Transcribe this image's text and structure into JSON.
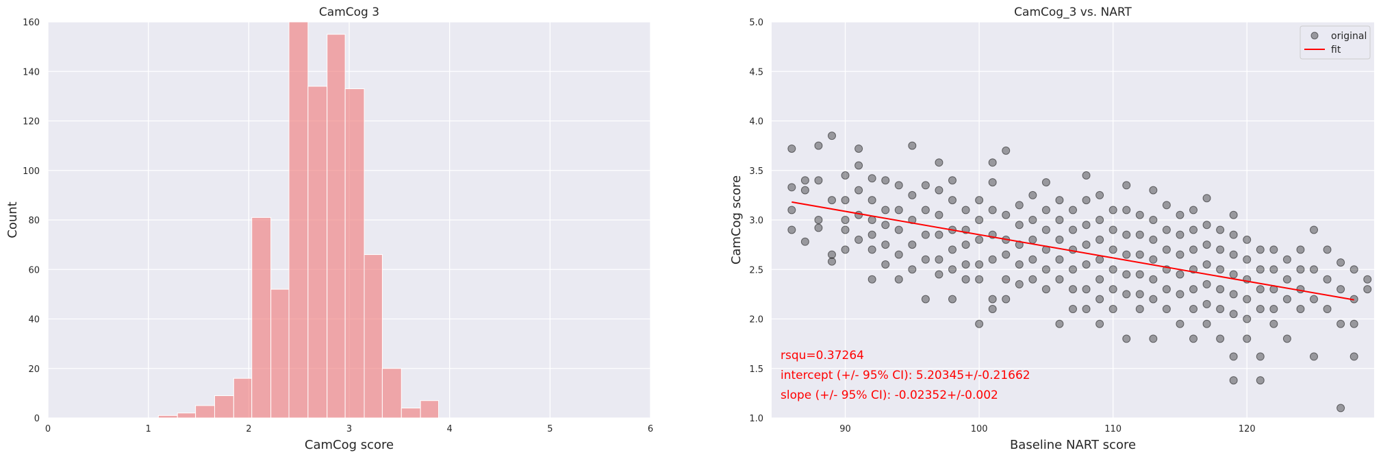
{
  "chart_data": [
    {
      "type": "bar",
      "title": "CamCog 3",
      "xlabel": "CamCog score",
      "ylabel": "Count",
      "xlim": [
        0,
        6
      ],
      "ylim": [
        0,
        160
      ],
      "xticks": [
        0,
        1,
        2,
        3,
        4,
        5,
        6
      ],
      "yticks": [
        0,
        20,
        40,
        60,
        80,
        100,
        120,
        140,
        160
      ],
      "grid": true,
      "bar_color": "#f08080",
      "bins": [
        {
          "x0": 1.1,
          "x1": 1.29,
          "value": 1
        },
        {
          "x0": 1.29,
          "x1": 1.47,
          "value": 2
        },
        {
          "x0": 1.47,
          "x1": 1.66,
          "value": 5
        },
        {
          "x0": 1.66,
          "x1": 1.85,
          "value": 9
        },
        {
          "x0": 1.85,
          "x1": 2.03,
          "value": 16
        },
        {
          "x0": 2.03,
          "x1": 2.22,
          "value": 81
        },
        {
          "x0": 2.22,
          "x1": 2.4,
          "value": 52
        },
        {
          "x0": 2.4,
          "x1": 2.59,
          "value": 160
        },
        {
          "x0": 2.59,
          "x1": 2.78,
          "value": 134
        },
        {
          "x0": 2.78,
          "x1": 2.96,
          "value": 155
        },
        {
          "x0": 2.96,
          "x1": 3.15,
          "value": 133
        },
        {
          "x0": 3.15,
          "x1": 3.33,
          "value": 66
        },
        {
          "x0": 3.33,
          "x1": 3.52,
          "value": 20
        },
        {
          "x0": 3.52,
          "x1": 3.71,
          "value": 4
        },
        {
          "x0": 3.71,
          "x1": 3.89,
          "value": 7
        }
      ]
    },
    {
      "type": "scatter",
      "title": "CamCog_3 vs. NART",
      "xlabel": "Baseline NART score",
      "ylabel": "CamCog score",
      "xlim": [
        84.5,
        129.5
      ],
      "ylim": [
        1.0,
        5.0
      ],
      "xticks": [
        90,
        100,
        110,
        120
      ],
      "yticks": [
        1.0,
        1.5,
        2.0,
        2.5,
        3.0,
        3.5,
        4.0,
        4.5,
        5.0
      ],
      "grid": true,
      "legend": {
        "placement": "top-right",
        "entries": [
          "original",
          "fit"
        ]
      },
      "point_color": "#000000",
      "fit_color": "#ff0000",
      "fit": {
        "intercept": 5.20345,
        "slope": -0.02352,
        "x_range": [
          86,
          128
        ]
      },
      "annotations": [
        "rsqu=0.37264",
        "intercept (+/- 95% CI): 5.20345+/-0.21662",
        "slope (+/- 95% CI): -0.02352+/-0.002"
      ],
      "annotation_color": "#ff0000",
      "points": [
        [
          86,
          3.72
        ],
        [
          86,
          3.33
        ],
        [
          86,
          3.1
        ],
        [
          86,
          2.9
        ],
        [
          87,
          3.4
        ],
        [
          87,
          3.3
        ],
        [
          87,
          2.78
        ],
        [
          88,
          3.75
        ],
        [
          88,
          3.4
        ],
        [
          88,
          3.0
        ],
        [
          88,
          2.92
        ],
        [
          89,
          3.85
        ],
        [
          89,
          3.2
        ],
        [
          89,
          2.65
        ],
        [
          89,
          2.58
        ],
        [
          90,
          3.45
        ],
        [
          90,
          3.2
        ],
        [
          90,
          3.0
        ],
        [
          90,
          2.9
        ],
        [
          90,
          2.7
        ],
        [
          91,
          3.72
        ],
        [
          91,
          3.55
        ],
        [
          91,
          3.3
        ],
        [
          91,
          3.05
        ],
        [
          91,
          2.8
        ],
        [
          92,
          3.42
        ],
        [
          92,
          3.2
        ],
        [
          92,
          3.0
        ],
        [
          92,
          2.85
        ],
        [
          92,
          2.7
        ],
        [
          92,
          2.4
        ],
        [
          93,
          3.4
        ],
        [
          93,
          3.1
        ],
        [
          93,
          2.95
        ],
        [
          93,
          2.75
        ],
        [
          93,
          2.55
        ],
        [
          94,
          3.35
        ],
        [
          94,
          3.1
        ],
        [
          94,
          2.9
        ],
        [
          94,
          2.65
        ],
        [
          94,
          2.4
        ],
        [
          95,
          3.75
        ],
        [
          95,
          3.25
        ],
        [
          95,
          3.0
        ],
        [
          95,
          2.75
        ],
        [
          95,
          2.5
        ],
        [
          96,
          3.35
        ],
        [
          96,
          3.1
        ],
        [
          96,
          2.85
        ],
        [
          96,
          2.6
        ],
        [
          96,
          2.2
        ],
        [
          97,
          3.58
        ],
        [
          97,
          3.3
        ],
        [
          97,
          3.05
        ],
        [
          97,
          2.85
        ],
        [
          97,
          2.6
        ],
        [
          97,
          2.45
        ],
        [
          98,
          3.4
        ],
        [
          98,
          3.2
        ],
        [
          98,
          2.9
        ],
        [
          98,
          2.7
        ],
        [
          98,
          2.5
        ],
        [
          98,
          2.2
        ],
        [
          99,
          3.1
        ],
        [
          99,
          2.9
        ],
        [
          99,
          2.75
        ],
        [
          99,
          2.55
        ],
        [
          99,
          2.4
        ],
        [
          100,
          3.2
        ],
        [
          100,
          3.0
        ],
        [
          100,
          2.8
        ],
        [
          100,
          2.55
        ],
        [
          100,
          2.4
        ],
        [
          100,
          1.95
        ],
        [
          101,
          3.58
        ],
        [
          101,
          3.38
        ],
        [
          101,
          3.1
        ],
        [
          101,
          2.85
        ],
        [
          101,
          2.6
        ],
        [
          101,
          2.2
        ],
        [
          101,
          2.1
        ],
        [
          102,
          3.7
        ],
        [
          102,
          3.05
        ],
        [
          102,
          2.8
        ],
        [
          102,
          2.65
        ],
        [
          102,
          2.4
        ],
        [
          102,
          2.2
        ],
        [
          103,
          3.15
        ],
        [
          103,
          2.95
        ],
        [
          103,
          2.75
        ],
        [
          103,
          2.55
        ],
        [
          103,
          2.35
        ],
        [
          104,
          3.25
        ],
        [
          104,
          3.0
        ],
        [
          104,
          2.8
        ],
        [
          104,
          2.6
        ],
        [
          104,
          2.4
        ],
        [
          105,
          3.38
        ],
        [
          105,
          3.1
        ],
        [
          105,
          2.9
        ],
        [
          105,
          2.7
        ],
        [
          105,
          2.5
        ],
        [
          105,
          2.3
        ],
        [
          106,
          3.2
        ],
        [
          106,
          3.0
        ],
        [
          106,
          2.8
        ],
        [
          106,
          2.6
        ],
        [
          106,
          2.4
        ],
        [
          106,
          1.95
        ],
        [
          107,
          3.1
        ],
        [
          107,
          2.9
        ],
        [
          107,
          2.7
        ],
        [
          107,
          2.5
        ],
        [
          107,
          2.3
        ],
        [
          107,
          2.1
        ],
        [
          108,
          3.45
        ],
        [
          108,
          3.2
        ],
        [
          108,
          2.95
        ],
        [
          108,
          2.75
        ],
        [
          108,
          2.55
        ],
        [
          108,
          2.3
        ],
        [
          108,
          2.1
        ],
        [
          109,
          3.25
        ],
        [
          109,
          3.0
        ],
        [
          109,
          2.8
        ],
        [
          109,
          2.6
        ],
        [
          109,
          2.4
        ],
        [
          109,
          2.2
        ],
        [
          109,
          1.95
        ],
        [
          110,
          3.1
        ],
        [
          110,
          2.9
        ],
        [
          110,
          2.7
        ],
        [
          110,
          2.5
        ],
        [
          110,
          2.3
        ],
        [
          110,
          2.1
        ],
        [
          111,
          3.35
        ],
        [
          111,
          3.1
        ],
        [
          111,
          2.85
        ],
        [
          111,
          2.65
        ],
        [
          111,
          2.45
        ],
        [
          111,
          2.25
        ],
        [
          111,
          1.8
        ],
        [
          112,
          3.05
        ],
        [
          112,
          2.85
        ],
        [
          112,
          2.65
        ],
        [
          112,
          2.45
        ],
        [
          112,
          2.25
        ],
        [
          112,
          2.1
        ],
        [
          113,
          3.3
        ],
        [
          113,
          3.0
        ],
        [
          113,
          2.8
        ],
        [
          113,
          2.6
        ],
        [
          113,
          2.4
        ],
        [
          113,
          2.2
        ],
        [
          113,
          1.8
        ],
        [
          114,
          3.15
        ],
        [
          114,
          2.9
        ],
        [
          114,
          2.7
        ],
        [
          114,
          2.5
        ],
        [
          114,
          2.3
        ],
        [
          114,
          2.1
        ],
        [
          115,
          3.05
        ],
        [
          115,
          2.85
        ],
        [
          115,
          2.65
        ],
        [
          115,
          2.45
        ],
        [
          115,
          2.25
        ],
        [
          115,
          1.95
        ],
        [
          116,
          3.1
        ],
        [
          116,
          2.9
        ],
        [
          116,
          2.7
        ],
        [
          116,
          2.5
        ],
        [
          116,
          2.3
        ],
        [
          116,
          2.1
        ],
        [
          116,
          1.8
        ],
        [
          117,
          3.22
        ],
        [
          117,
          2.95
        ],
        [
          117,
          2.75
        ],
        [
          117,
          2.55
        ],
        [
          117,
          2.35
        ],
        [
          117,
          2.15
        ],
        [
          117,
          1.95
        ],
        [
          118,
          2.9
        ],
        [
          118,
          2.7
        ],
        [
          118,
          2.5
        ],
        [
          118,
          2.3
        ],
        [
          118,
          2.1
        ],
        [
          118,
          1.8
        ],
        [
          119,
          3.05
        ],
        [
          119,
          2.85
        ],
        [
          119,
          2.65
        ],
        [
          119,
          2.45
        ],
        [
          119,
          2.25
        ],
        [
          119,
          2.05
        ],
        [
          119,
          1.62
        ],
        [
          119,
          1.38
        ],
        [
          120,
          2.8
        ],
        [
          120,
          2.6
        ],
        [
          120,
          2.4
        ],
        [
          120,
          2.2
        ],
        [
          120,
          2.0
        ],
        [
          120,
          1.8
        ],
        [
          121,
          2.7
        ],
        [
          121,
          2.5
        ],
        [
          121,
          2.3
        ],
        [
          121,
          2.1
        ],
        [
          121,
          1.62
        ],
        [
          121,
          1.38
        ],
        [
          122,
          2.7
        ],
        [
          122,
          2.5
        ],
        [
          122,
          2.3
        ],
        [
          122,
          2.1
        ],
        [
          122,
          1.95
        ],
        [
          123,
          2.6
        ],
        [
          123,
          2.4
        ],
        [
          123,
          2.2
        ],
        [
          123,
          1.8
        ],
        [
          124,
          2.7
        ],
        [
          124,
          2.5
        ],
        [
          124,
          2.3
        ],
        [
          124,
          2.1
        ],
        [
          125,
          2.9
        ],
        [
          125,
          2.5
        ],
        [
          125,
          2.2
        ],
        [
          125,
          1.62
        ],
        [
          126,
          2.7
        ],
        [
          126,
          2.4
        ],
        [
          126,
          2.1
        ],
        [
          127,
          2.57
        ],
        [
          127,
          2.3
        ],
        [
          127,
          1.95
        ],
        [
          127,
          1.1
        ],
        [
          128,
          2.5
        ],
        [
          128,
          2.2
        ],
        [
          128,
          1.95
        ],
        [
          128,
          1.62
        ],
        [
          129,
          2.4
        ],
        [
          129,
          2.3
        ]
      ]
    }
  ]
}
